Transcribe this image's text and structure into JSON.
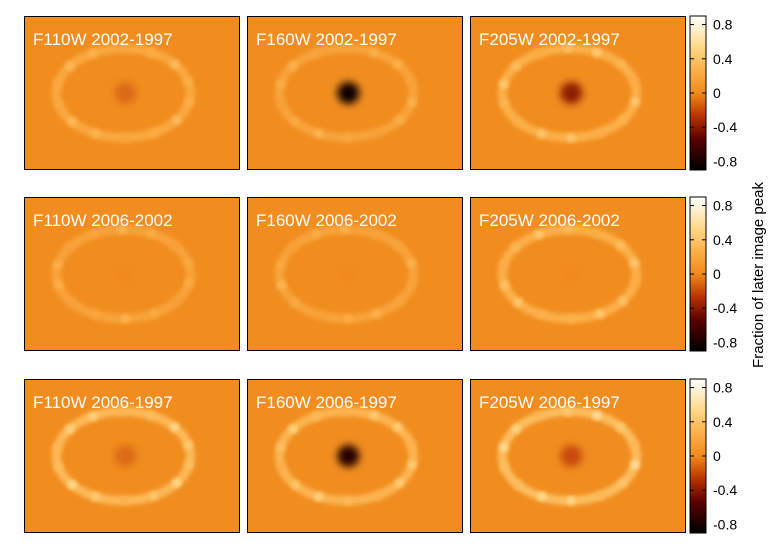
{
  "chart_data": {
    "type": "heatmap",
    "panels": [
      {
        "label": "F110W 2002-1997",
        "filter": "F110W",
        "epochs": "2002-1997",
        "center_value": -0.1,
        "ring_value": 0.35
      },
      {
        "label": "F160W 2002-1997",
        "filter": "F160W",
        "epochs": "2002-1997",
        "center_value": -0.85,
        "ring_value": 0.3
      },
      {
        "label": "F205W 2002-1997",
        "filter": "F205W",
        "epochs": "2002-1997",
        "center_value": -0.4,
        "ring_value": 0.45
      },
      {
        "label": "F110W 2006-2002",
        "filter": "F110W",
        "epochs": "2006-2002",
        "center_value": 0.0,
        "ring_value": 0.3
      },
      {
        "label": "F160W 2006-2002",
        "filter": "F160W",
        "epochs": "2006-2002",
        "center_value": 0.0,
        "ring_value": 0.3
      },
      {
        "label": "F205W 2006-2002",
        "filter": "F205W",
        "epochs": "2006-2002",
        "center_value": 0.0,
        "ring_value": 0.45
      },
      {
        "label": "F110W 2006-1997",
        "filter": "F110W",
        "epochs": "2006-1997",
        "center_value": -0.1,
        "ring_value": 0.55
      },
      {
        "label": "F160W 2006-1997",
        "filter": "F160W",
        "epochs": "2006-1997",
        "center_value": -0.75,
        "ring_value": 0.5
      },
      {
        "label": "F205W 2006-1997",
        "filter": "F205W",
        "epochs": "2006-1997",
        "center_value": -0.2,
        "ring_value": 0.6
      }
    ],
    "colorbar": {
      "label": "Fraction of later image peak",
      "range": [
        -0.9,
        0.9
      ],
      "ticks": [
        0.8,
        0.4,
        0,
        -0.4,
        -0.8
      ],
      "tick_labels": [
        "0.8",
        "0.4",
        "0",
        "-0.4",
        "-0.8"
      ],
      "colormap": "black-red-orange-yellow-white (gnuplot hot)"
    }
  }
}
